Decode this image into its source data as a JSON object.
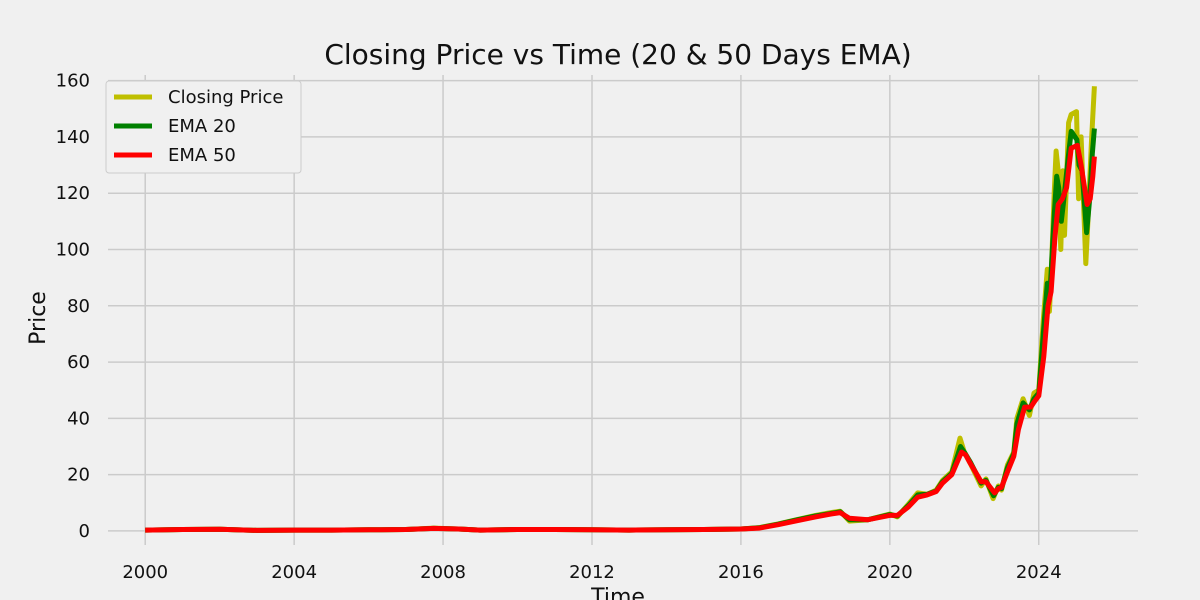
{
  "chart_data": {
    "type": "line",
    "title": "Closing Price vs Time (20 & 50 Days EMA)",
    "xlabel": "Time",
    "ylabel": "Price",
    "xlim": [
      "1999-01-01",
      "2026-09-01"
    ],
    "ylim": [
      -5,
      162
    ],
    "xticks": [
      {
        "label": "2000",
        "date": "2000-01-01"
      },
      {
        "label": "2004",
        "date": "2004-01-01"
      },
      {
        "label": "2008",
        "date": "2008-01-01"
      },
      {
        "label": "2012",
        "date": "2012-01-01"
      },
      {
        "label": "2016",
        "date": "2016-01-01"
      },
      {
        "label": "2020",
        "date": "2020-01-01"
      },
      {
        "label": "2024",
        "date": "2024-01-01"
      }
    ],
    "yticks": [
      0,
      20,
      40,
      60,
      80,
      100,
      120,
      140,
      160
    ],
    "grid": true,
    "legend_position": "top-left",
    "series": [
      {
        "name": "Closing Price",
        "color": "#bfbf00",
        "points": [
          [
            "2000-01-01",
            0.3
          ],
          [
            "2001-01-01",
            0.5
          ],
          [
            "2002-01-01",
            0.6
          ],
          [
            "2003-01-01",
            0.2
          ],
          [
            "2004-01-01",
            0.3
          ],
          [
            "2005-01-01",
            0.3
          ],
          [
            "2006-01-01",
            0.4
          ],
          [
            "2007-01-01",
            0.5
          ],
          [
            "2007-10-01",
            1.0
          ],
          [
            "2008-06-01",
            0.7
          ],
          [
            "2009-01-01",
            0.3
          ],
          [
            "2010-01-01",
            0.5
          ],
          [
            "2011-01-01",
            0.5
          ],
          [
            "2012-01-01",
            0.4
          ],
          [
            "2013-01-01",
            0.3
          ],
          [
            "2014-01-01",
            0.4
          ],
          [
            "2015-01-01",
            0.5
          ],
          [
            "2016-01-01",
            0.7
          ],
          [
            "2016-07-01",
            1.2
          ],
          [
            "2017-01-01",
            2.5
          ],
          [
            "2017-07-01",
            4.0
          ],
          [
            "2018-01-01",
            5.5
          ],
          [
            "2018-06-01",
            6.5
          ],
          [
            "2018-09-01",
            7.0
          ],
          [
            "2018-12-01",
            3.5
          ],
          [
            "2019-06-01",
            4.0
          ],
          [
            "2020-01-01",
            6.0
          ],
          [
            "2020-03-15",
            5.0
          ],
          [
            "2020-07-01",
            9.5
          ],
          [
            "2020-10-01",
            13.5
          ],
          [
            "2021-01-01",
            13.0
          ],
          [
            "2021-04-01",
            14.5
          ],
          [
            "2021-06-01",
            18.0
          ],
          [
            "2021-09-01",
            21.0
          ],
          [
            "2021-11-20",
            33.0
          ],
          [
            "2022-01-01",
            28.0
          ],
          [
            "2022-03-01",
            24.0
          ],
          [
            "2022-06-15",
            16.0
          ],
          [
            "2022-08-01",
            18.5
          ],
          [
            "2022-10-10",
            11.5
          ],
          [
            "2022-12-01",
            16.0
          ],
          [
            "2023-01-01",
            14.5
          ],
          [
            "2023-03-01",
            23.5
          ],
          [
            "2023-05-01",
            28.0
          ],
          [
            "2023-06-01",
            40.0
          ],
          [
            "2023-08-01",
            47.0
          ],
          [
            "2023-10-01",
            41.0
          ],
          [
            "2023-11-15",
            49.0
          ],
          [
            "2024-01-01",
            50.0
          ],
          [
            "2024-02-15",
            75.0
          ],
          [
            "2024-03-25",
            93.0
          ],
          [
            "2024-04-15",
            78.0
          ],
          [
            "2024-05-01",
            90.0
          ],
          [
            "2024-06-01",
            120.0
          ],
          [
            "2024-06-20",
            135.0
          ],
          [
            "2024-07-10",
            128.0
          ],
          [
            "2024-08-05",
            100.0
          ],
          [
            "2024-08-25",
            128.0
          ],
          [
            "2024-09-10",
            105.0
          ],
          [
            "2024-10-20",
            145.0
          ],
          [
            "2024-11-15",
            148.0
          ],
          [
            "2025-01-06",
            149.0
          ],
          [
            "2025-01-27",
            118.0
          ],
          [
            "2025-02-20",
            140.0
          ],
          [
            "2025-04-07",
            95.0
          ],
          [
            "2025-05-01",
            112.0
          ],
          [
            "2025-06-01",
            138.0
          ],
          [
            "2025-07-01",
            158.0
          ]
        ]
      },
      {
        "name": "EMA 20",
        "color": "#008000",
        "points": [
          [
            "2000-01-01",
            0.3
          ],
          [
            "2001-01-01",
            0.5
          ],
          [
            "2002-01-01",
            0.6
          ],
          [
            "2003-01-01",
            0.2
          ],
          [
            "2004-01-01",
            0.3
          ],
          [
            "2005-01-01",
            0.3
          ],
          [
            "2006-01-01",
            0.4
          ],
          [
            "2007-01-01",
            0.5
          ],
          [
            "2007-10-01",
            0.9
          ],
          [
            "2008-06-01",
            0.7
          ],
          [
            "2009-01-01",
            0.3
          ],
          [
            "2010-01-01",
            0.5
          ],
          [
            "2011-01-01",
            0.5
          ],
          [
            "2012-01-01",
            0.4
          ],
          [
            "2013-01-01",
            0.3
          ],
          [
            "2014-01-01",
            0.4
          ],
          [
            "2015-01-01",
            0.5
          ],
          [
            "2016-01-01",
            0.7
          ],
          [
            "2016-07-01",
            1.1
          ],
          [
            "2017-01-01",
            2.4
          ],
          [
            "2017-07-01",
            3.9
          ],
          [
            "2018-01-01",
            5.3
          ],
          [
            "2018-06-01",
            6.2
          ],
          [
            "2018-09-01",
            6.8
          ],
          [
            "2018-12-01",
            4.0
          ],
          [
            "2019-06-01",
            4.0
          ],
          [
            "2020-01-01",
            5.8
          ],
          [
            "2020-03-15",
            5.3
          ],
          [
            "2020-07-01",
            9.0
          ],
          [
            "2020-10-01",
            12.8
          ],
          [
            "2021-01-01",
            13.0
          ],
          [
            "2021-04-01",
            14.2
          ],
          [
            "2021-06-01",
            17.5
          ],
          [
            "2021-09-01",
            20.5
          ],
          [
            "2021-11-25",
            30.0
          ],
          [
            "2022-01-01",
            28.0
          ],
          [
            "2022-03-01",
            24.5
          ],
          [
            "2022-06-15",
            17.0
          ],
          [
            "2022-08-01",
            18.0
          ],
          [
            "2022-10-15",
            12.5
          ],
          [
            "2022-12-01",
            15.5
          ],
          [
            "2023-01-01",
            15.0
          ],
          [
            "2023-03-01",
            22.5
          ],
          [
            "2023-05-01",
            27.5
          ],
          [
            "2023-06-01",
            38.0
          ],
          [
            "2023-08-01",
            45.5
          ],
          [
            "2023-10-01",
            43.0
          ],
          [
            "2023-11-15",
            47.0
          ],
          [
            "2024-01-01",
            49.0
          ],
          [
            "2024-02-15",
            70.0
          ],
          [
            "2024-03-25",
            88.0
          ],
          [
            "2024-04-20",
            84.0
          ],
          [
            "2024-06-01",
            112.0
          ],
          [
            "2024-06-25",
            126.0
          ],
          [
            "2024-07-15",
            122.0
          ],
          [
            "2024-08-10",
            110.0
          ],
          [
            "2024-09-01",
            117.0
          ],
          [
            "2024-10-15",
            132.0
          ],
          [
            "2024-11-15",
            142.0
          ],
          [
            "2025-01-10",
            139.0
          ],
          [
            "2025-02-01",
            130.0
          ],
          [
            "2025-03-01",
            128.0
          ],
          [
            "2025-04-15",
            106.0
          ],
          [
            "2025-05-15",
            118.0
          ],
          [
            "2025-06-10",
            134.0
          ],
          [
            "2025-07-01",
            143.0
          ]
        ]
      },
      {
        "name": "EMA 50",
        "color": "#ff0000",
        "points": [
          [
            "2000-01-01",
            0.3
          ],
          [
            "2001-01-01",
            0.5
          ],
          [
            "2002-01-01",
            0.6
          ],
          [
            "2003-01-01",
            0.2
          ],
          [
            "2004-01-01",
            0.3
          ],
          [
            "2005-01-01",
            0.3
          ],
          [
            "2006-01-01",
            0.4
          ],
          [
            "2007-01-01",
            0.5
          ],
          [
            "2007-10-01",
            0.9
          ],
          [
            "2008-06-01",
            0.7
          ],
          [
            "2009-01-01",
            0.3
          ],
          [
            "2010-01-01",
            0.5
          ],
          [
            "2011-01-01",
            0.5
          ],
          [
            "2012-01-01",
            0.4
          ],
          [
            "2013-01-01",
            0.3
          ],
          [
            "2014-01-01",
            0.4
          ],
          [
            "2015-01-01",
            0.5
          ],
          [
            "2016-01-01",
            0.7
          ],
          [
            "2016-07-01",
            1.0
          ],
          [
            "2017-01-01",
            2.2
          ],
          [
            "2017-07-01",
            3.6
          ],
          [
            "2018-01-01",
            5.0
          ],
          [
            "2018-06-01",
            6.0
          ],
          [
            "2018-09-01",
            6.5
          ],
          [
            "2018-12-01",
            4.5
          ],
          [
            "2019-06-01",
            4.0
          ],
          [
            "2020-01-01",
            5.5
          ],
          [
            "2020-03-15",
            5.5
          ],
          [
            "2020-07-01",
            8.5
          ],
          [
            "2020-10-01",
            12.0
          ],
          [
            "2021-01-01",
            12.8
          ],
          [
            "2021-04-01",
            14.0
          ],
          [
            "2021-06-01",
            17.0
          ],
          [
            "2021-09-01",
            20.0
          ],
          [
            "2021-12-05",
            28.0
          ],
          [
            "2022-01-15",
            27.0
          ],
          [
            "2022-03-01",
            24.0
          ],
          [
            "2022-06-15",
            17.5
          ],
          [
            "2022-08-01",
            17.5
          ],
          [
            "2022-10-25",
            13.5
          ],
          [
            "2022-12-01",
            15.0
          ],
          [
            "2023-01-01",
            15.5
          ],
          [
            "2023-03-01",
            21.0
          ],
          [
            "2023-05-01",
            26.5
          ],
          [
            "2023-06-15",
            36.0
          ],
          [
            "2023-08-15",
            44.0
          ],
          [
            "2023-10-15",
            44.0
          ],
          [
            "2023-11-20",
            46.0
          ],
          [
            "2024-01-01",
            48.0
          ],
          [
            "2024-02-20",
            62.0
          ],
          [
            "2024-04-01",
            80.0
          ],
          [
            "2024-05-01",
            85.0
          ],
          [
            "2024-06-10",
            105.0
          ],
          [
            "2024-07-10",
            116.0
          ],
          [
            "2024-08-20",
            118.0
          ],
          [
            "2024-10-01",
            122.0
          ],
          [
            "2024-11-15",
            136.0
          ],
          [
            "2025-01-15",
            137.0
          ],
          [
            "2025-02-20",
            130.0
          ],
          [
            "2025-04-20",
            116.0
          ],
          [
            "2025-05-20",
            118.0
          ],
          [
            "2025-06-15",
            126.0
          ],
          [
            "2025-07-01",
            133.0
          ]
        ]
      }
    ]
  }
}
